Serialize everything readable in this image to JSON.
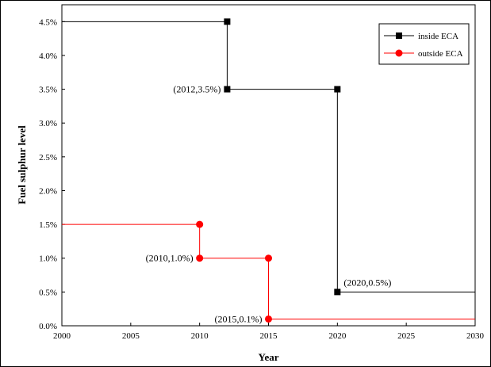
{
  "chart_data": {
    "type": "line",
    "xlabel": "Year",
    "ylabel": "Fuel sulphur level",
    "xlim": [
      2000,
      2030
    ],
    "ylim": [
      0,
      4.75
    ],
    "x_ticks": [
      2000,
      2005,
      2010,
      2015,
      2020,
      2025,
      2030
    ],
    "x_tick_labels": [
      "2000",
      "2005",
      "2010",
      "2015",
      "2020",
      "2025",
      "2030"
    ],
    "y_ticks": [
      0,
      0.5,
      1.0,
      1.5,
      2.0,
      2.5,
      3.0,
      3.5,
      4.0,
      4.5
    ],
    "y_tick_labels": [
      "0.0%",
      "0.5%",
      "1.0%",
      "1.5%",
      "2.0%",
      "2.5%",
      "3.0%",
      "3.5%",
      "4.0%",
      "4.5%"
    ],
    "legend_position": "top-right",
    "grid": false,
    "series": [
      {
        "name": "inside ECA",
        "color": "#000000",
        "marker": "square",
        "line": [
          [
            2000,
            4.5
          ],
          [
            2012,
            4.5
          ],
          [
            2012,
            3.5
          ],
          [
            2020,
            3.5
          ],
          [
            2020,
            0.5
          ],
          [
            2030,
            0.5
          ]
        ],
        "markers": [
          [
            2012,
            4.5
          ],
          [
            2012,
            3.5
          ],
          [
            2020,
            3.5
          ],
          [
            2020,
            0.5
          ]
        ]
      },
      {
        "name": "outside ECA",
        "color": "#ff0000",
        "marker": "circle",
        "line": [
          [
            2000,
            1.5
          ],
          [
            2010,
            1.5
          ],
          [
            2010,
            1.0
          ],
          [
            2015,
            1.0
          ],
          [
            2015,
            0.1
          ],
          [
            2030,
            0.1
          ]
        ],
        "markers": [
          [
            2010,
            1.5
          ],
          [
            2010,
            1.0
          ],
          [
            2015,
            1.0
          ],
          [
            2015,
            0.1
          ]
        ]
      }
    ],
    "annotations": [
      {
        "text": "(2012,3.5%)",
        "x": 2012,
        "y": 3.5,
        "anchor": "end"
      },
      {
        "text": "(2020,0.5%)",
        "x": 2020,
        "y": 0.5,
        "anchor": "start"
      },
      {
        "text": "(2010,1.0%)",
        "x": 2010,
        "y": 1.0,
        "anchor": "end"
      },
      {
        "text": "(2015,0.1%)",
        "x": 2015,
        "y": 0.1,
        "anchor": "end"
      }
    ]
  }
}
